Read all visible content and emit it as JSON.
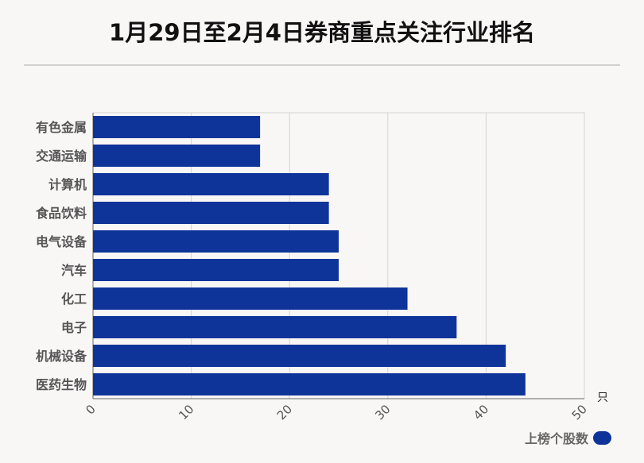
{
  "title": "1月29日至2月4日券商重点关注行业排名",
  "legend": {
    "label": "上榜个股数",
    "color": "#0f3499"
  },
  "chart_data": {
    "type": "bar",
    "orientation": "horizontal",
    "categories": [
      "有色金属",
      "交通运输",
      "计算机",
      "食品饮料",
      "电气设备",
      "汽车",
      "化工",
      "电子",
      "机械设备",
      "医药生物"
    ],
    "series": [
      {
        "name": "上榜个股数",
        "values": [
          17,
          17,
          24,
          24,
          25,
          25,
          32,
          37,
          42,
          44
        ],
        "color": "#0f3499"
      }
    ],
    "xlim": [
      0,
      50
    ],
    "xticks": [
      "0",
      "10",
      "20",
      "30",
      "40",
      "50"
    ],
    "xunit": "只",
    "grid": true,
    "legend_position": "bottom-right"
  }
}
